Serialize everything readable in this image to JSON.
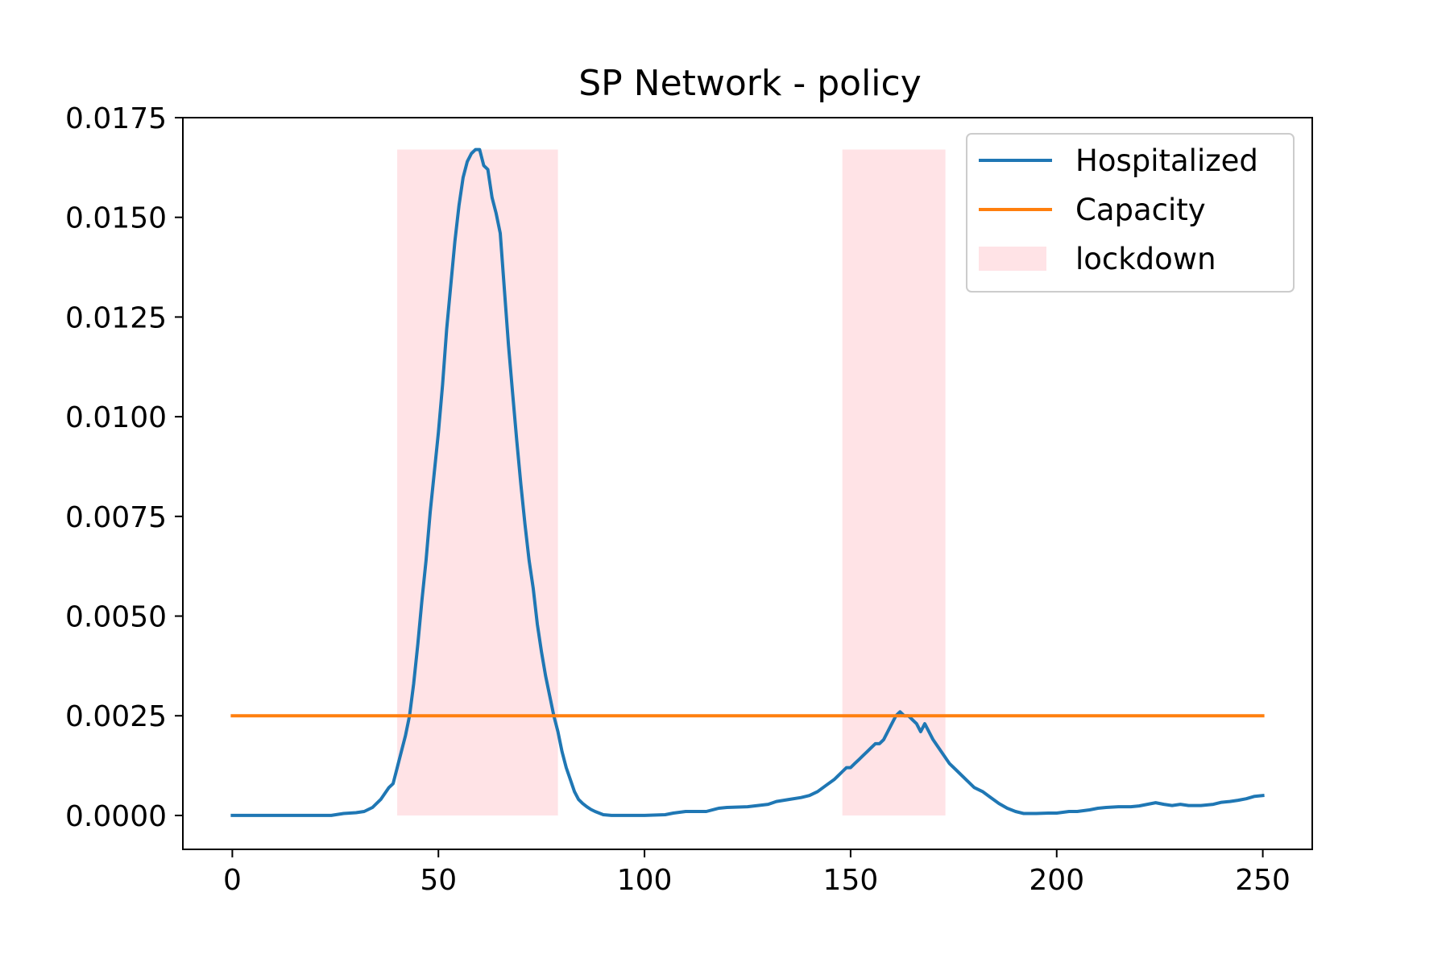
{
  "chart_data": {
    "type": "line",
    "title": "SP Network - policy",
    "xlabel": "",
    "ylabel": "",
    "xlim": [
      -12,
      262
    ],
    "ylim": [
      -0.00085,
      0.0175
    ],
    "x_ticks": [
      0,
      50,
      100,
      150,
      200,
      250
    ],
    "x_tick_labels": [
      "0",
      "50",
      "100",
      "150",
      "200",
      "250"
    ],
    "y_ticks": [
      0,
      0.0025,
      0.005,
      0.0075,
      0.01,
      0.0125,
      0.015,
      0.0175
    ],
    "y_tick_labels": [
      "0.0000",
      "0.0025",
      "0.0050",
      "0.0075",
      "0.0100",
      "0.0125",
      "0.0150",
      "0.0175"
    ],
    "legend_position": "top-right",
    "grid": false,
    "colors": {
      "hospitalized": "#1f77b4",
      "capacity": "#ff7f0e",
      "lockdown": "#ffe3e6"
    },
    "lockdown_periods": [
      [
        40,
        79
      ],
      [
        148,
        173
      ]
    ],
    "lockdown_ymax": 0.0167,
    "series": [
      {
        "name": "Hospitalized",
        "x": [
          0,
          5,
          10,
          15,
          20,
          24,
          27,
          30,
          32,
          34,
          36,
          38,
          39,
          40,
          41,
          42,
          43,
          44,
          45,
          46,
          47,
          48,
          49,
          50,
          51,
          52,
          53,
          54,
          55,
          56,
          57,
          58,
          59,
          60,
          61,
          62,
          63,
          64,
          65,
          66,
          67,
          68,
          69,
          70,
          71,
          72,
          73,
          74,
          75,
          76,
          77,
          78,
          79,
          80,
          81,
          82,
          83,
          84,
          85,
          86,
          87,
          88,
          89,
          90,
          92,
          95,
          98,
          100,
          105,
          107,
          110,
          115,
          118,
          120,
          125,
          130,
          132,
          135,
          138,
          140,
          142,
          144,
          146,
          147,
          148,
          149,
          150,
          151,
          152,
          153,
          154,
          155,
          156,
          157,
          158,
          159,
          160,
          161,
          162,
          163,
          164,
          165,
          166,
          167,
          168,
          170,
          172,
          174,
          176,
          178,
          180,
          182,
          184,
          186,
          188,
          190,
          192,
          195,
          198,
          200,
          203,
          205,
          208,
          210,
          212,
          215,
          218,
          220,
          222,
          224,
          226,
          228,
          230,
          232,
          235,
          238,
          240,
          242,
          244,
          246,
          248,
          250
        ],
        "values": [
          0,
          0,
          0,
          0,
          0,
          0,
          5e-05,
          7e-05,
          0.0001,
          0.0002,
          0.0004,
          0.0007,
          0.0008,
          0.0012,
          0.0016,
          0.002,
          0.0025,
          0.0033,
          0.0043,
          0.0054,
          0.0064,
          0.0076,
          0.0086,
          0.0096,
          0.0108,
          0.0122,
          0.0133,
          0.0144,
          0.0153,
          0.016,
          0.0164,
          0.0166,
          0.0167,
          0.0167,
          0.0163,
          0.0162,
          0.0155,
          0.0151,
          0.0146,
          0.0132,
          0.0118,
          0.0106,
          0.0094,
          0.0083,
          0.0073,
          0.0064,
          0.0057,
          0.0048,
          0.0041,
          0.0035,
          0.003,
          0.0025,
          0.0021,
          0.0016,
          0.0012,
          0.0009,
          0.0006,
          0.0004,
          0.0003,
          0.00022,
          0.00015,
          0.0001,
          6e-05,
          2e-05,
          0,
          0,
          0,
          0,
          2e-05,
          6e-05,
          0.0001,
          0.0001,
          0.00018,
          0.0002,
          0.00022,
          0.00028,
          0.00035,
          0.0004,
          0.00045,
          0.0005,
          0.0006,
          0.00075,
          0.0009,
          0.001,
          0.0011,
          0.0012,
          0.0012,
          0.0013,
          0.0014,
          0.0015,
          0.0016,
          0.0017,
          0.0018,
          0.0018,
          0.0019,
          0.0021,
          0.0023,
          0.0025,
          0.0026,
          0.0025,
          0.0025,
          0.0024,
          0.0023,
          0.0021,
          0.0023,
          0.0019,
          0.0016,
          0.0013,
          0.0011,
          0.0009,
          0.0007,
          0.0006,
          0.00045,
          0.0003,
          0.00018,
          0.0001,
          5e-05,
          5e-05,
          6e-05,
          6e-05,
          0.0001,
          0.0001,
          0.00014,
          0.00018,
          0.0002,
          0.00022,
          0.00022,
          0.00024,
          0.00028,
          0.00032,
          0.00028,
          0.00025,
          0.00028,
          0.00025,
          0.00025,
          0.00028,
          0.00033,
          0.00035,
          0.00038,
          0.00042,
          0.00048,
          0.0005
        ]
      },
      {
        "name": "Capacity",
        "x": [
          0,
          250
        ],
        "values": [
          0.0025,
          0.0025
        ]
      }
    ],
    "legend": [
      "Hospitalized",
      "Capacity",
      "lockdown"
    ]
  }
}
